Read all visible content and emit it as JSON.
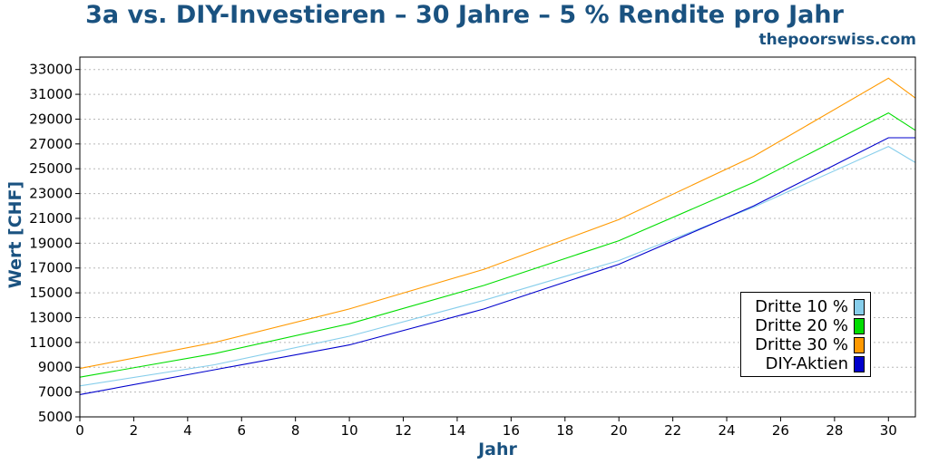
{
  "title": "3a vs. DIY-Investieren – 30 Jahre – 5 % Rendite pro Jahr",
  "subtitle": "thepoorswiss.com",
  "title_color": "#1a5280",
  "chart_data": {
    "type": "line",
    "title": "3a vs. DIY-Investieren – 30 Jahre – 5 % Rendite pro Jahr",
    "xlabel": "Jahr",
    "ylabel": "Wert [CHF]",
    "xlim": [
      0,
      31
    ],
    "ylim": [
      5000,
      34000
    ],
    "x_ticks": [
      0,
      2,
      4,
      6,
      8,
      10,
      12,
      14,
      16,
      18,
      20,
      22,
      24,
      26,
      28,
      30
    ],
    "y_ticks": [
      5000,
      7000,
      9000,
      11000,
      13000,
      15000,
      17000,
      19000,
      21000,
      23000,
      25000,
      27000,
      29000,
      31000,
      33000
    ],
    "grid": "horizontal dotted",
    "legend_position": "lower-right",
    "x": [
      0,
      5,
      10,
      15,
      20,
      25,
      30,
      31
    ],
    "series": [
      {
        "name": "Dritte 10 %",
        "color": "#87ceeb",
        "values": [
          7500,
          9200,
          11500,
          14400,
          17600,
          21900,
          26800,
          25500
        ]
      },
      {
        "name": "Dritte 20 %",
        "color": "#00dd00",
        "values": [
          8200,
          10100,
          12500,
          15600,
          19200,
          23900,
          29500,
          28100
        ]
      },
      {
        "name": "Dritte 30 %",
        "color": "#ff9900",
        "values": [
          8900,
          11000,
          13700,
          16900,
          20900,
          26000,
          32300,
          30700
        ]
      },
      {
        "name": "DIY-Aktien",
        "color": "#0000cc",
        "values": [
          6800,
          8800,
          10800,
          13700,
          17300,
          22000,
          27500,
          27500
        ]
      }
    ]
  }
}
